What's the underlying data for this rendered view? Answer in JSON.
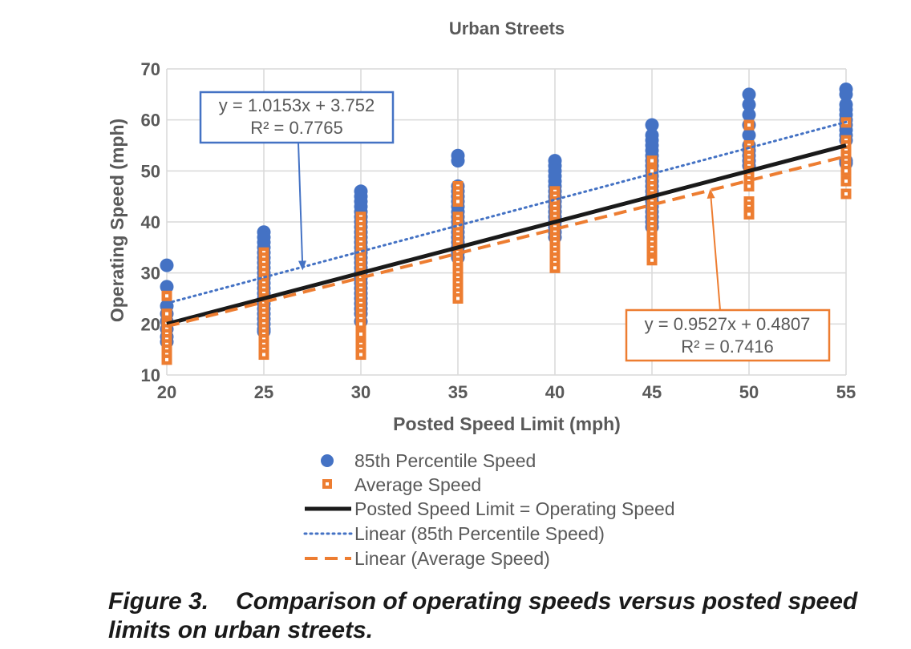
{
  "chart_data": {
    "type": "scatter",
    "title": "Urban Streets",
    "xlabel": "Posted Speed Limit (mph)",
    "ylabel": "Operating Speed (mph)",
    "xlim": [
      20,
      55
    ],
    "ylim": [
      10,
      70
    ],
    "xticks": [
      20,
      25,
      30,
      35,
      40,
      45,
      50,
      55
    ],
    "yticks": [
      10,
      20,
      30,
      40,
      50,
      60,
      70
    ],
    "grid": true,
    "colors": {
      "p85": "#4472C4",
      "avg": "#ED7D31",
      "ref": "#1a1a1a"
    },
    "series": [
      {
        "name": "85th Percentile Speed",
        "marker": "circle",
        "points": [
          [
            20,
            31.5
          ],
          [
            20,
            27.3
          ],
          [
            20,
            23.5
          ],
          [
            20,
            22
          ],
          [
            20,
            20.5
          ],
          [
            20,
            19
          ],
          [
            20,
            17.5
          ],
          [
            20,
            16.5
          ],
          [
            25,
            38
          ],
          [
            25,
            37
          ],
          [
            25,
            36
          ],
          [
            25,
            35
          ],
          [
            25,
            34
          ],
          [
            25,
            33
          ],
          [
            25,
            32
          ],
          [
            25,
            31
          ],
          [
            25,
            30
          ],
          [
            25,
            29
          ],
          [
            25,
            28
          ],
          [
            25,
            27
          ],
          [
            25,
            26
          ],
          [
            25,
            25
          ],
          [
            25,
            24
          ],
          [
            25,
            23
          ],
          [
            25,
            22
          ],
          [
            25,
            21
          ],
          [
            25,
            20
          ],
          [
            25,
            19
          ],
          [
            25,
            18.5
          ],
          [
            30,
            46
          ],
          [
            30,
            45
          ],
          [
            30,
            44
          ],
          [
            30,
            43
          ],
          [
            30,
            42
          ],
          [
            30,
            41
          ],
          [
            30,
            40
          ],
          [
            30,
            39
          ],
          [
            30,
            38
          ],
          [
            30,
            37
          ],
          [
            30,
            36
          ],
          [
            30,
            35
          ],
          [
            30,
            34
          ],
          [
            30,
            33
          ],
          [
            30,
            32
          ],
          [
            30,
            31
          ],
          [
            30,
            30
          ],
          [
            30,
            29
          ],
          [
            30,
            28
          ],
          [
            30,
            27
          ],
          [
            30,
            26
          ],
          [
            30,
            25
          ],
          [
            30,
            24
          ],
          [
            30,
            23
          ],
          [
            30,
            22
          ],
          [
            30,
            20.5
          ],
          [
            35,
            53
          ],
          [
            35,
            52
          ],
          [
            35,
            47
          ],
          [
            35,
            46
          ],
          [
            35,
            45
          ],
          [
            35,
            44
          ],
          [
            35,
            43
          ],
          [
            35,
            42
          ],
          [
            35,
            41
          ],
          [
            35,
            40
          ],
          [
            35,
            39
          ],
          [
            35,
            38
          ],
          [
            35,
            37
          ],
          [
            35,
            36
          ],
          [
            35,
            35
          ],
          [
            35,
            34
          ],
          [
            35,
            33
          ],
          [
            40,
            52
          ],
          [
            40,
            51
          ],
          [
            40,
            50
          ],
          [
            40,
            49
          ],
          [
            40,
            48
          ],
          [
            40,
            47
          ],
          [
            40,
            46
          ],
          [
            40,
            45
          ],
          [
            40,
            44
          ],
          [
            40,
            43
          ],
          [
            40,
            42
          ],
          [
            40,
            41
          ],
          [
            40,
            40
          ],
          [
            40,
            39
          ],
          [
            40,
            38
          ],
          [
            40,
            37
          ],
          [
            45,
            59
          ],
          [
            45,
            57
          ],
          [
            45,
            56
          ],
          [
            45,
            55
          ],
          [
            45,
            54
          ],
          [
            45,
            53
          ],
          [
            45,
            52
          ],
          [
            45,
            51
          ],
          [
            45,
            50
          ],
          [
            45,
            49
          ],
          [
            45,
            48
          ],
          [
            45,
            47
          ],
          [
            45,
            46
          ],
          [
            45,
            45
          ],
          [
            45,
            44
          ],
          [
            45,
            43
          ],
          [
            45,
            42
          ],
          [
            45,
            41
          ],
          [
            45,
            40
          ],
          [
            45,
            39
          ],
          [
            50,
            65
          ],
          [
            50,
            63
          ],
          [
            50,
            61
          ],
          [
            50,
            59
          ],
          [
            50,
            57
          ],
          [
            50,
            55
          ],
          [
            50,
            54
          ],
          [
            50,
            53
          ],
          [
            50,
            52
          ],
          [
            50,
            51
          ],
          [
            55,
            66
          ],
          [
            55,
            65
          ],
          [
            55,
            63
          ],
          [
            55,
            62
          ],
          [
            55,
            61
          ],
          [
            55,
            60
          ],
          [
            55,
            59
          ],
          [
            55,
            58
          ],
          [
            55,
            57
          ],
          [
            55,
            56
          ],
          [
            55,
            52
          ],
          [
            55,
            51.5
          ]
        ]
      },
      {
        "name": "Average Speed",
        "marker": "square",
        "points": [
          [
            20,
            25.5
          ],
          [
            20,
            22
          ],
          [
            20,
            20
          ],
          [
            20,
            19
          ],
          [
            20,
            18
          ],
          [
            20,
            17
          ],
          [
            20,
            16
          ],
          [
            20,
            15
          ],
          [
            20,
            14
          ],
          [
            20,
            13
          ],
          [
            25,
            34
          ],
          [
            25,
            33
          ],
          [
            25,
            32
          ],
          [
            25,
            31
          ],
          [
            25,
            30
          ],
          [
            25,
            29
          ],
          [
            25,
            28
          ],
          [
            25,
            27
          ],
          [
            25,
            26
          ],
          [
            25,
            25
          ],
          [
            25,
            24
          ],
          [
            25,
            23
          ],
          [
            25,
            22
          ],
          [
            25,
            21
          ],
          [
            25,
            20
          ],
          [
            25,
            19
          ],
          [
            25,
            18
          ],
          [
            25,
            17
          ],
          [
            25,
            16
          ],
          [
            25,
            15
          ],
          [
            25,
            14
          ],
          [
            30,
            41
          ],
          [
            30,
            40
          ],
          [
            30,
            39
          ],
          [
            30,
            38
          ],
          [
            30,
            37
          ],
          [
            30,
            36
          ],
          [
            30,
            35
          ],
          [
            30,
            34
          ],
          [
            30,
            33
          ],
          [
            30,
            32
          ],
          [
            30,
            31
          ],
          [
            30,
            30
          ],
          [
            30,
            29
          ],
          [
            30,
            28
          ],
          [
            30,
            27
          ],
          [
            30,
            26
          ],
          [
            30,
            25
          ],
          [
            30,
            24
          ],
          [
            30,
            23
          ],
          [
            30,
            22
          ],
          [
            30,
            21
          ],
          [
            30,
            20
          ],
          [
            30,
            18
          ],
          [
            30,
            16
          ],
          [
            30,
            15
          ],
          [
            30,
            14
          ],
          [
            35,
            47
          ],
          [
            35,
            46
          ],
          [
            35,
            45
          ],
          [
            35,
            44
          ],
          [
            35,
            41
          ],
          [
            35,
            40
          ],
          [
            35,
            39
          ],
          [
            35,
            38
          ],
          [
            35,
            37
          ],
          [
            35,
            36
          ],
          [
            35,
            35
          ],
          [
            35,
            34
          ],
          [
            35,
            33
          ],
          [
            35,
            32
          ],
          [
            35,
            31
          ],
          [
            35,
            30
          ],
          [
            35,
            29
          ],
          [
            35,
            28
          ],
          [
            35,
            27
          ],
          [
            35,
            26
          ],
          [
            35,
            25
          ],
          [
            40,
            46
          ],
          [
            40,
            45
          ],
          [
            40,
            44
          ],
          [
            40,
            43
          ],
          [
            40,
            42
          ],
          [
            40,
            41
          ],
          [
            40,
            40
          ],
          [
            40,
            39
          ],
          [
            40,
            38
          ],
          [
            40,
            37
          ],
          [
            40,
            36
          ],
          [
            40,
            35
          ],
          [
            40,
            34
          ],
          [
            40,
            33
          ],
          [
            40,
            32
          ],
          [
            40,
            31
          ],
          [
            45,
            52
          ],
          [
            45,
            50
          ],
          [
            45,
            48
          ],
          [
            45,
            47
          ],
          [
            45,
            46
          ],
          [
            45,
            45
          ],
          [
            45,
            44
          ],
          [
            45,
            43
          ],
          [
            45,
            42
          ],
          [
            45,
            41
          ],
          [
            45,
            40
          ],
          [
            45,
            39
          ],
          [
            45,
            38
          ],
          [
            45,
            37
          ],
          [
            45,
            36
          ],
          [
            45,
            35
          ],
          [
            45,
            34
          ],
          [
            45,
            33
          ],
          [
            45,
            32.5
          ],
          [
            50,
            59
          ],
          [
            50,
            55
          ],
          [
            50,
            54
          ],
          [
            50,
            53
          ],
          [
            50,
            52
          ],
          [
            50,
            51
          ],
          [
            50,
            50
          ],
          [
            50,
            49
          ],
          [
            50,
            48
          ],
          [
            50,
            47
          ],
          [
            50,
            44
          ],
          [
            50,
            43
          ],
          [
            50,
            42
          ],
          [
            50,
            41.5
          ],
          [
            55,
            59.5
          ],
          [
            55,
            56
          ],
          [
            55,
            55
          ],
          [
            55,
            54
          ],
          [
            55,
            53
          ],
          [
            55,
            52
          ],
          [
            55,
            51
          ],
          [
            55,
            50
          ],
          [
            55,
            48
          ],
          [
            55,
            45.5
          ]
        ]
      },
      {
        "name": "Posted Speed Limit = Operating Speed",
        "style": "solid",
        "line": [
          [
            20,
            20
          ],
          [
            55,
            55
          ]
        ]
      },
      {
        "name": "Linear (85th Percentile Speed)",
        "style": "dotted",
        "slope": 1.0153,
        "intercept": 3.752
      },
      {
        "name": "Linear (Average Speed)",
        "style": "dashed",
        "slope": 0.9527,
        "intercept": 0.4807
      }
    ],
    "annotations": [
      {
        "series": "85th",
        "eq": "y = 1.0153x + 3.752",
        "r2": "R² = 0.7765",
        "arrow_to": [
          27,
          30.5
        ]
      },
      {
        "series": "avg",
        "eq": "y = 0.9527x + 0.4807",
        "r2": "R² = 0.7416",
        "arrow_to": [
          48,
          46.5
        ]
      }
    ],
    "legend": "bottom"
  },
  "caption": {
    "number": "Figure 3.",
    "text": "Comparison of operating speeds versus posted speed limits on urban streets."
  }
}
